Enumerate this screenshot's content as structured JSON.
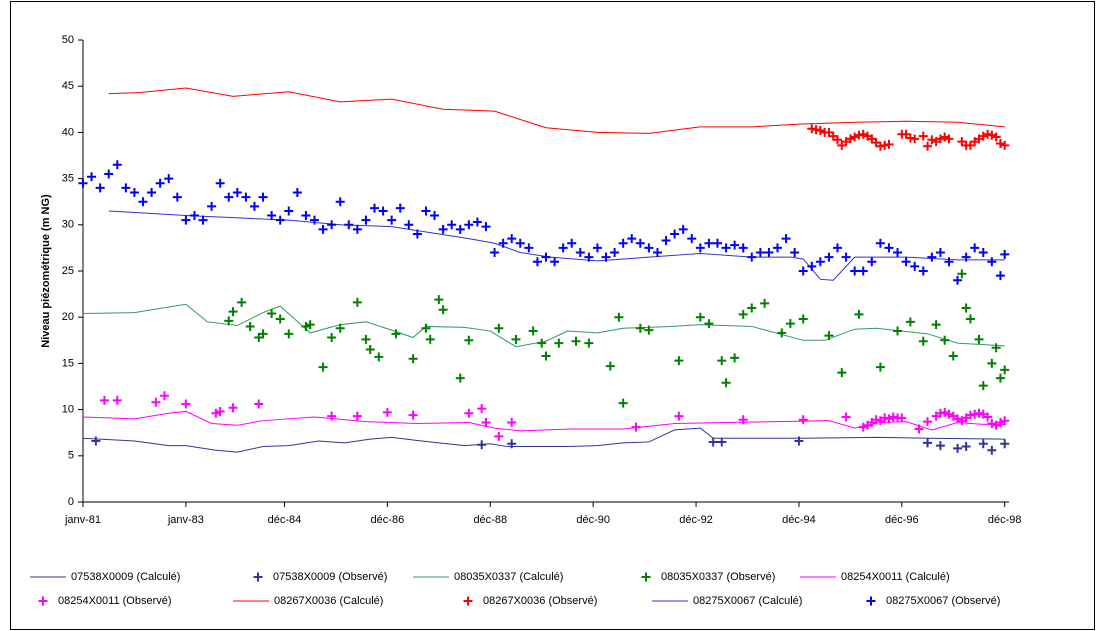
{
  "chart_data": {
    "type": "line",
    "y_label": "Niveau piézométrique (m NG)",
    "ylim": [
      0,
      50
    ],
    "yticks": [
      0,
      5,
      10,
      15,
      20,
      25,
      30,
      35,
      40,
      45,
      50
    ],
    "xlim": [
      "1981-01",
      "1999-01"
    ],
    "xticks": [
      {
        "value": "1981-01",
        "label": "janv-81"
      },
      {
        "value": "1983-01",
        "label": "janv-83"
      },
      {
        "value": "1984-12",
        "label": "déc-84"
      },
      {
        "value": "1986-12",
        "label": "déc-86"
      },
      {
        "value": "1988-12",
        "label": "déc-88"
      },
      {
        "value": "1990-12",
        "label": "déc-90"
      },
      {
        "value": "1992-12",
        "label": "déc-92"
      },
      {
        "value": "1994-12",
        "label": "déc-94"
      },
      {
        "value": "1996-12",
        "label": "déc-96"
      },
      {
        "value": "1998-12",
        "label": "déc-98"
      }
    ],
    "grid": false,
    "legend": "bottom",
    "series": [
      {
        "name": "07538X0009 (Calculé)",
        "style": "line",
        "color": "#333399",
        "x": [
          "1981-01",
          "1982-01",
          "1982-09",
          "1983-01",
          "1983-08",
          "1984-01",
          "1984-07",
          "1985-01",
          "1985-08",
          "1986-02",
          "1986-08",
          "1987-01",
          "1987-08",
          "1988-06",
          "1988-12",
          "1989-04",
          "1990-06",
          "1991-01",
          "1991-07",
          "1992-01",
          "1992-07",
          "1993-01",
          "1993-04",
          "1994-12",
          "1996-06",
          "1997-06",
          "1998-12"
        ],
        "values": [
          6.9,
          6.6,
          6.1,
          6.1,
          5.6,
          5.4,
          6.0,
          6.1,
          6.6,
          6.4,
          6.8,
          7.0,
          6.6,
          6.1,
          6.3,
          6.0,
          6.0,
          6.1,
          6.4,
          6.5,
          7.8,
          8.0,
          6.9,
          6.9,
          7.0,
          6.9,
          6.8
        ]
      },
      {
        "name": "07538X0009 (Observé)",
        "style": "cross",
        "color": "#333399",
        "x": [
          "1981-04",
          "1988-10",
          "1989-05",
          "1993-04",
          "1993-06",
          "1994-12",
          "1997-06",
          "1997-09",
          "1998-01",
          "1998-03",
          "1998-07",
          "1998-09",
          "1998-12"
        ],
        "values": [
          6.6,
          6.2,
          6.3,
          6.5,
          6.5,
          6.6,
          6.4,
          6.1,
          5.8,
          6.0,
          6.3,
          5.6,
          6.3
        ]
      },
      {
        "name": "08035X0337 (Calculé)",
        "style": "line",
        "color": "#339966",
        "x": [
          "1981-01",
          "1982-01",
          "1982-09",
          "1983-01",
          "1983-06",
          "1984-01",
          "1984-07",
          "1984-11",
          "1985-06",
          "1986-01",
          "1986-07",
          "1987-01",
          "1987-06",
          "1987-09",
          "1988-06",
          "1988-12",
          "1989-06",
          "1990-01",
          "1990-06",
          "1991-01",
          "1991-07",
          "1992-06",
          "1993-01",
          "1994-01",
          "1995-01",
          "1995-06",
          "1996-01",
          "1996-06",
          "1997-06",
          "1998-01",
          "1998-12"
        ],
        "values": [
          20.4,
          20.5,
          21.1,
          21.4,
          19.5,
          19.1,
          20.5,
          21.2,
          18.3,
          19.2,
          19.5,
          18.6,
          17.8,
          19.0,
          18.9,
          18.5,
          16.8,
          17.4,
          18.5,
          18.3,
          18.8,
          19.0,
          19.2,
          19.0,
          17.5,
          17.5,
          18.7,
          18.8,
          18.2,
          17.2,
          16.9
        ]
      },
      {
        "name": "08035X0337 (Observé)",
        "style": "cross",
        "color": "#008000",
        "x": [
          "1983-11",
          "1983-12",
          "1984-02",
          "1984-04",
          "1984-06",
          "1984-07",
          "1984-09",
          "1984-11",
          "1985-01",
          "1985-05",
          "1985-06",
          "1985-09",
          "1985-11",
          "1986-01",
          "1986-05",
          "1986-07",
          "1986-08",
          "1986-10",
          "1987-02",
          "1987-06",
          "1987-09",
          "1987-10",
          "1987-12",
          "1988-01",
          "1988-05",
          "1988-07",
          "1989-02",
          "1989-06",
          "1989-10",
          "1989-12",
          "1990-01",
          "1990-04",
          "1990-08",
          "1990-11",
          "1991-04",
          "1991-06",
          "1991-07",
          "1991-11",
          "1992-01",
          "1992-08",
          "1993-01",
          "1993-03",
          "1993-06",
          "1993-07",
          "1993-09",
          "1993-11",
          "1994-01",
          "1994-04",
          "1994-08",
          "1994-10",
          "1995-01",
          "1995-07",
          "1995-10",
          "1996-02",
          "1996-07",
          "1996-11",
          "1997-02",
          "1997-05",
          "1997-08",
          "1997-10",
          "1997-12",
          "1998-02",
          "1998-03",
          "1998-04",
          "1998-06",
          "1998-07",
          "1998-09",
          "1998-10",
          "1998-11",
          "1998-12"
        ],
        "values": [
          19.6,
          20.6,
          21.6,
          19.0,
          17.8,
          18.2,
          20.4,
          19.8,
          18.2,
          19.0,
          19.2,
          14.6,
          17.8,
          18.8,
          21.6,
          17.6,
          16.5,
          15.7,
          18.2,
          15.5,
          18.8,
          17.6,
          21.9,
          20.8,
          13.4,
          17.5,
          18.8,
          17.6,
          18.5,
          17.2,
          15.8,
          17.2,
          17.4,
          17.2,
          14.7,
          20.0,
          10.7,
          18.8,
          18.6,
          15.3,
          20.0,
          19.3,
          15.3,
          12.9,
          15.6,
          20.3,
          21.0,
          21.5,
          18.3,
          19.3,
          19.8,
          18.0,
          14.0,
          20.3,
          14.6,
          18.5,
          19.5,
          17.4,
          19.2,
          17.5,
          15.8,
          24.7,
          21.0,
          19.8,
          17.6,
          12.6,
          15.0,
          16.7,
          13.4,
          14.3
        ]
      },
      {
        "name": "08254X0011 (Calculé)",
        "style": "line",
        "color": "#ff00ff",
        "x": [
          "1981-01",
          "1982-01",
          "1982-09",
          "1983-01",
          "1983-07",
          "1984-01",
          "1984-07",
          "1985-07",
          "1986-07",
          "1987-07",
          "1988-07",
          "1989-01",
          "1989-07",
          "1990-07",
          "1991-07",
          "1992-07",
          "1993-07",
          "1994-07",
          "1995-07",
          "1996-01",
          "1996-07",
          "1997-01",
          "1997-07",
          "1998-01",
          "1998-07",
          "1998-12"
        ],
        "values": [
          9.2,
          9.0,
          9.6,
          9.8,
          8.5,
          8.3,
          8.8,
          9.2,
          8.7,
          8.5,
          8.6,
          8.0,
          7.7,
          7.9,
          7.9,
          8.5,
          8.6,
          8.7,
          8.8,
          8.0,
          8.6,
          8.7,
          7.8,
          8.6,
          8.4,
          8.4
        ]
      },
      {
        "name": "08254X0011 (Observé)",
        "style": "cross",
        "color": "#ff00ff",
        "x": [
          "1981-06",
          "1981-09",
          "1982-06",
          "1982-08",
          "1983-01",
          "1983-08",
          "1983-09",
          "1983-12",
          "1984-06",
          "1985-11",
          "1986-05",
          "1986-12",
          "1987-06",
          "1988-07",
          "1988-10",
          "1988-11",
          "1989-02",
          "1989-05",
          "1991-10",
          "1992-08",
          "1993-11",
          "1995-01",
          "1995-11",
          "1996-03",
          "1996-04",
          "1996-05",
          "1996-06",
          "1996-07",
          "1996-08",
          "1996-09",
          "1996-10",
          "1996-11",
          "1996-12",
          "1997-04",
          "1997-06",
          "1997-08",
          "1997-09",
          "1997-10",
          "1997-11",
          "1997-12",
          "1998-01",
          "1998-02",
          "1998-03",
          "1998-04",
          "1998-05",
          "1998-06",
          "1998-07",
          "1998-08",
          "1998-09",
          "1998-10",
          "1998-11",
          "1998-12"
        ],
        "values": [
          11.0,
          11.0,
          10.8,
          11.5,
          10.6,
          9.6,
          9.8,
          10.2,
          10.6,
          9.3,
          9.3,
          9.7,
          9.4,
          9.6,
          10.1,
          8.6,
          7.1,
          8.6,
          8.1,
          9.3,
          8.9,
          8.9,
          9.2,
          8.1,
          8.3,
          8.6,
          8.9,
          8.8,
          9.1,
          9.0,
          9.2,
          9.1,
          9.1,
          7.9,
          8.7,
          9.3,
          9.6,
          9.7,
          9.5,
          9.3,
          9.0,
          8.8,
          9.1,
          9.4,
          9.5,
          9.6,
          9.5,
          9.2,
          8.5,
          8.3,
          8.6,
          8.8
        ]
      },
      {
        "name": "08267X0036 (Calculé)",
        "style": "line",
        "color": "#ff0000",
        "x": [
          "1981-07",
          "1982-02",
          "1983-01",
          "1983-12",
          "1985-01",
          "1986-01",
          "1987-01",
          "1988-01",
          "1989-01",
          "1989-07",
          "1990-01",
          "1991-01",
          "1992-01",
          "1993-01",
          "1994-01",
          "1994-12",
          "1996-01",
          "1997-01",
          "1998-01",
          "1998-12"
        ],
        "values": [
          44.2,
          44.3,
          44.8,
          43.9,
          44.4,
          43.3,
          43.6,
          42.5,
          42.3,
          41.4,
          40.5,
          40.0,
          39.9,
          40.6,
          40.6,
          40.9,
          41.1,
          41.2,
          41.1,
          40.6
        ]
      },
      {
        "name": "08267X0036 (Observé)",
        "style": "cross",
        "color": "#ff0000",
        "x": [
          "1995-03",
          "1995-04",
          "1995-05",
          "1995-06",
          "1995-07",
          "1995-08",
          "1995-09",
          "1995-10",
          "1995-11",
          "1995-12",
          "1996-01",
          "1996-02",
          "1996-03",
          "1996-04",
          "1996-05",
          "1996-06",
          "1996-07",
          "1996-08",
          "1996-09",
          "1996-12",
          "1997-01",
          "1997-02",
          "1997-03",
          "1997-05",
          "1997-06",
          "1997-07",
          "1997-08",
          "1997-09",
          "1997-10",
          "1997-11",
          "1998-02",
          "1998-03",
          "1998-04",
          "1998-05",
          "1998-06",
          "1998-07",
          "1998-08",
          "1998-09",
          "1998-10",
          "1998-11",
          "1998-12"
        ],
        "values": [
          40.4,
          40.3,
          40.2,
          40.0,
          40.0,
          39.6,
          39.2,
          38.6,
          39.0,
          39.3,
          39.5,
          39.7,
          39.8,
          39.6,
          39.3,
          38.9,
          38.5,
          38.6,
          38.7,
          39.8,
          39.8,
          39.4,
          39.3,
          39.6,
          38.5,
          39.2,
          39.0,
          39.3,
          39.5,
          39.3,
          39.0,
          38.6,
          38.6,
          39.0,
          39.3,
          39.6,
          39.8,
          39.7,
          39.5,
          38.8,
          38.6
        ]
      },
      {
        "name": "08275X0067 (Calculé)",
        "style": "line",
        "color": "#3333cc",
        "x": [
          "1981-07",
          "1983-01",
          "1985-01",
          "1986-01",
          "1987-01",
          "1988-07",
          "1989-01",
          "1989-07",
          "1990-02",
          "1991-01",
          "1992-01",
          "1993-01",
          "1994-01",
          "1994-10",
          "1995-01",
          "1995-05",
          "1995-08",
          "1996-01",
          "1997-01",
          "1998-01",
          "1998-12"
        ],
        "values": [
          31.5,
          31.0,
          30.5,
          30.0,
          29.8,
          28.5,
          28.0,
          27.0,
          26.5,
          26.1,
          26.5,
          26.9,
          26.5,
          26.5,
          26.3,
          24.1,
          24.0,
          26.5,
          26.5,
          26.2,
          26.2
        ]
      },
      {
        "name": "08275X0067 (Observé)",
        "style": "cross",
        "color": "#0000ff",
        "x": [
          "1981-01",
          "1981-03",
          "1981-05",
          "1981-07",
          "1981-09",
          "1981-11",
          "1982-01",
          "1982-03",
          "1982-05",
          "1982-07",
          "1982-09",
          "1982-11",
          "1983-01",
          "1983-03",
          "1983-05",
          "1983-07",
          "1983-09",
          "1983-11",
          "1984-01",
          "1984-03",
          "1984-05",
          "1984-07",
          "1984-09",
          "1984-11",
          "1985-01",
          "1985-03",
          "1985-05",
          "1985-07",
          "1985-09",
          "1985-11",
          "1986-01",
          "1986-03",
          "1986-05",
          "1986-07",
          "1986-09",
          "1986-11",
          "1987-01",
          "1987-03",
          "1987-05",
          "1987-07",
          "1987-09",
          "1987-11",
          "1988-01",
          "1988-03",
          "1988-05",
          "1988-07",
          "1988-09",
          "1988-11",
          "1989-01",
          "1989-03",
          "1989-05",
          "1989-07",
          "1989-09",
          "1989-11",
          "1990-01",
          "1990-03",
          "1990-05",
          "1990-07",
          "1990-09",
          "1990-11",
          "1991-01",
          "1991-03",
          "1991-05",
          "1991-07",
          "1991-09",
          "1991-11",
          "1992-01",
          "1992-03",
          "1992-05",
          "1992-07",
          "1992-09",
          "1992-11",
          "1993-01",
          "1993-03",
          "1993-05",
          "1993-07",
          "1993-09",
          "1993-11",
          "1994-01",
          "1994-03",
          "1994-05",
          "1994-07",
          "1994-09",
          "1994-11",
          "1995-01",
          "1995-03",
          "1995-05",
          "1995-07",
          "1995-09",
          "1995-11",
          "1996-01",
          "1996-03",
          "1996-05",
          "1996-07",
          "1996-09",
          "1996-11",
          "1997-01",
          "1997-03",
          "1997-05",
          "1997-07",
          "1997-09",
          "1997-11",
          "1998-01",
          "1998-03",
          "1998-05",
          "1998-07",
          "1998-09",
          "1998-11",
          "1998-12"
        ],
        "values": [
          34.5,
          35.2,
          34.0,
          35.5,
          36.5,
          34.0,
          33.5,
          32.5,
          33.5,
          34.5,
          35.0,
          33.0,
          30.5,
          31.0,
          30.5,
          32.0,
          34.5,
          33.0,
          33.5,
          33.0,
          32.0,
          33.0,
          31.0,
          30.5,
          31.5,
          33.5,
          31.0,
          30.5,
          29.5,
          30.0,
          32.5,
          30.0,
          29.5,
          30.5,
          31.8,
          31.5,
          30.5,
          31.8,
          30.0,
          29.0,
          31.5,
          31.0,
          29.5,
          30.0,
          29.5,
          30.0,
          30.3,
          29.8,
          27.0,
          28.0,
          28.5,
          28.0,
          27.5,
          26.0,
          26.5,
          26.0,
          27.5,
          28.0,
          27.0,
          26.5,
          27.5,
          26.5,
          27.0,
          28.0,
          28.5,
          28.0,
          27.5,
          27.0,
          28.3,
          29.0,
          29.5,
          28.5,
          27.5,
          28.0,
          28.0,
          27.5,
          27.8,
          27.5,
          26.5,
          27.0,
          27.0,
          27.5,
          28.5,
          27.0,
          25.0,
          25.5,
          26.0,
          26.5,
          27.5,
          26.5,
          25.0,
          25.0,
          26.0,
          28.0,
          27.5,
          27.0,
          26.0,
          25.5,
          25.0,
          26.5,
          27.0,
          26.0,
          24.0,
          26.5,
          27.5,
          27.0,
          26.0,
          24.5,
          26.8
        ]
      }
    ]
  }
}
